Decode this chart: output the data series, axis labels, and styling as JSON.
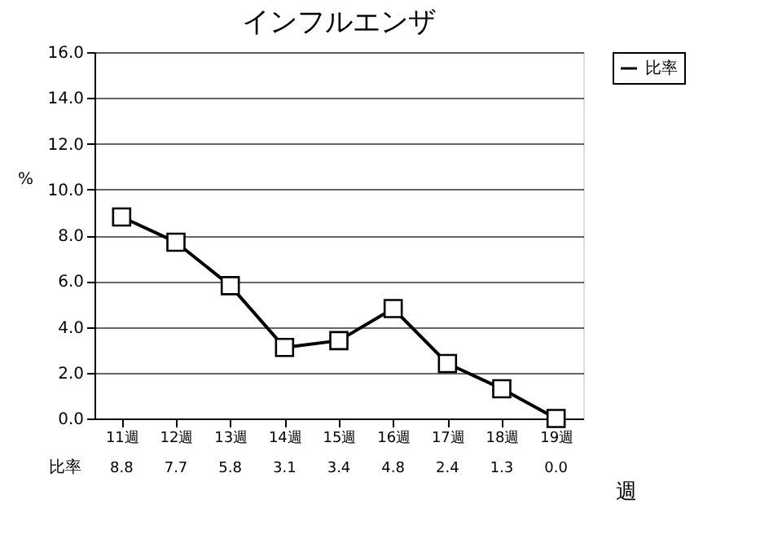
{
  "chart_data": {
    "type": "line",
    "title": "インフルエンザ",
    "xlabel": "週",
    "ylabel": "%",
    "categories": [
      "11週",
      "12週",
      "13週",
      "14週",
      "15週",
      "16週",
      "17週",
      "18週",
      "19週"
    ],
    "series": [
      {
        "name": "比率",
        "color": "#000000",
        "values": [
          8.8,
          7.7,
          5.8,
          3.1,
          3.4,
          4.8,
          2.4,
          1.3,
          0.0
        ],
        "value_labels": [
          "8.8",
          "7.7",
          "5.8",
          "3.1",
          "3.4",
          "4.8",
          "2.4",
          "1.3",
          "0.0"
        ]
      }
    ],
    "ylim": [
      0,
      16
    ],
    "yticks": [
      {
        "value": 0,
        "label": "0.0"
      },
      {
        "value": 2,
        "label": "2.0"
      },
      {
        "value": 4,
        "label": "4.0"
      },
      {
        "value": 6,
        "label": "6.0"
      },
      {
        "value": 8,
        "label": "8.0"
      },
      {
        "value": 10,
        "label": "10.0"
      },
      {
        "value": 12,
        "label": "12.0"
      },
      {
        "value": 14,
        "label": "14.0"
      },
      {
        "value": 16,
        "label": "16.0"
      }
    ],
    "grid": "y",
    "legend": "top right",
    "marker": "square",
    "line_style": "solid"
  }
}
